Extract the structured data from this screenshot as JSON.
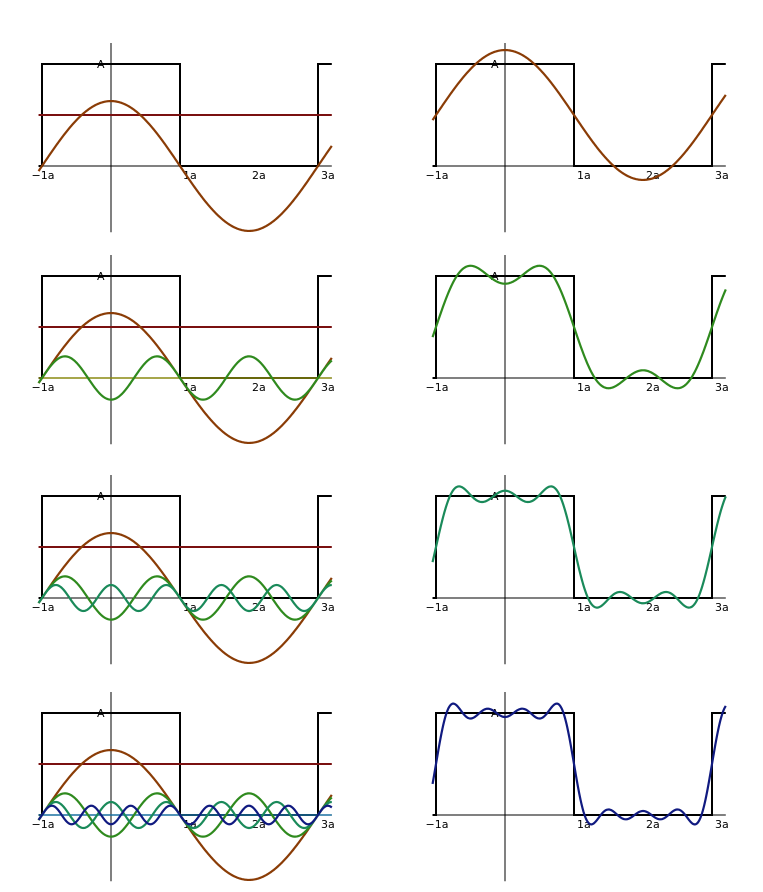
{
  "chart_data": {
    "type": "line",
    "title": "",
    "xlabel": "",
    "ylabel": "",
    "x_unit": "a",
    "x_range": [
      -1.05,
      3.2
    ],
    "y_range": [
      -1.0,
      1.45
    ],
    "period": 4,
    "square_wave": {
      "low": 0,
      "high": 1,
      "high_intervals": [
        [
          -1,
          1
        ],
        [
          3,
          5
        ]
      ]
    },
    "peak_label": "A",
    "x_tick_labels": [
      "−1a",
      "1a",
      "2a",
      "3a"
    ],
    "x_tick_values": [
      -1,
      1,
      2,
      3
    ],
    "grid": false,
    "legend": "none",
    "colors": {
      "square": "#000000",
      "axis": "#000000",
      "dc": "#7a1010",
      "h1": "#8a3c06",
      "h3": "#2f8a1e",
      "h5": "#1a8a5a",
      "h7": "#101a80",
      "h3_baseline": "#8a8a10",
      "h7_baseline": "#1a70a0"
    },
    "panels": [
      {
        "row": 1,
        "components": [
          {
            "kind": "dc",
            "y": 0.5
          },
          {
            "kind": "harmonic",
            "n": 1,
            "amplitude": 0.6366
          }
        ],
        "partial_sum": {
          "harmonics": [
            1
          ],
          "color": "h1"
        }
      },
      {
        "row": 2,
        "components": [
          {
            "kind": "dc",
            "y": 0.5
          },
          {
            "kind": "harmonic",
            "n": 1,
            "amplitude": 0.6366
          },
          {
            "kind": "harmonic",
            "n": 3,
            "amplitude": -0.2122
          }
        ],
        "partial_sum": {
          "harmonics": [
            1,
            3
          ],
          "color": "h3"
        },
        "baseline_color": "h3_baseline"
      },
      {
        "row": 3,
        "components": [
          {
            "kind": "dc",
            "y": 0.5
          },
          {
            "kind": "harmonic",
            "n": 1,
            "amplitude": 0.6366
          },
          {
            "kind": "harmonic",
            "n": 3,
            "amplitude": -0.2122
          },
          {
            "kind": "harmonic",
            "n": 5,
            "amplitude": 0.1273
          }
        ],
        "partial_sum": {
          "harmonics": [
            1,
            3,
            5
          ],
          "color": "h5"
        }
      },
      {
        "row": 4,
        "components": [
          {
            "kind": "dc",
            "y": 0.5
          },
          {
            "kind": "harmonic",
            "n": 1,
            "amplitude": 0.6366
          },
          {
            "kind": "harmonic",
            "n": 3,
            "amplitude": -0.2122
          },
          {
            "kind": "harmonic",
            "n": 5,
            "amplitude": 0.1273
          },
          {
            "kind": "harmonic",
            "n": 7,
            "amplitude": -0.0909
          }
        ],
        "partial_sum": {
          "harmonics": [
            1,
            3,
            5,
            7
          ],
          "color": "h7"
        },
        "baseline_color": "h7_baseline"
      }
    ]
  }
}
